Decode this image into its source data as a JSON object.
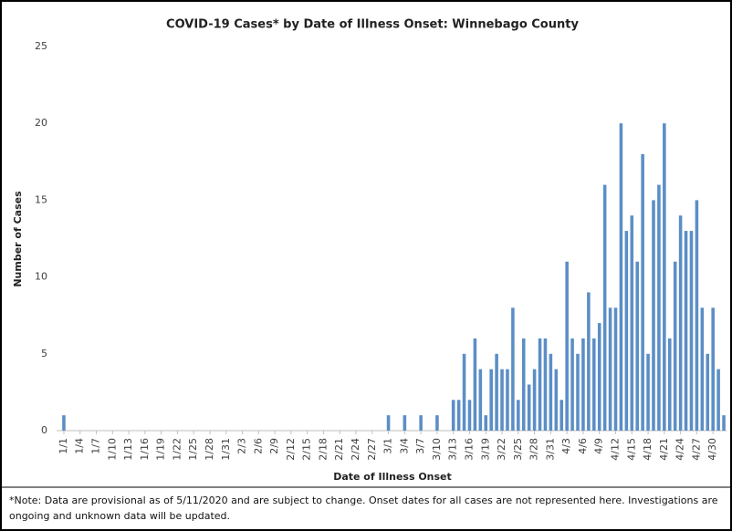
{
  "chart_data": {
    "type": "bar",
    "title": "COVID-19 Cases* by Date of Illness Onset: Winnebago County",
    "x_label": "Date of Illness Onset",
    "y_label": "Number of Cases",
    "footnote": "*Note: Data are provisional as of 5/11/2020 and are subject to change. Onset dates for all cases are not represented here. Investigations are ongoing and unknown data will be updated.",
    "color": "#5b8ec6",
    "ylim": [
      0,
      25
    ],
    "yticks": [
      0,
      5,
      10,
      15,
      20,
      25
    ],
    "grid": false,
    "categories": [
      "1/1",
      null,
      null,
      "1/4",
      null,
      null,
      "1/7",
      null,
      null,
      "1/10",
      null,
      null,
      "1/13",
      null,
      null,
      "1/16",
      null,
      null,
      "1/19",
      null,
      null,
      "1/22",
      null,
      null,
      "1/25",
      null,
      null,
      "1/28",
      null,
      null,
      "1/31",
      null,
      null,
      "2/3",
      null,
      null,
      "2/6",
      null,
      null,
      "2/9",
      null,
      null,
      "2/12",
      null,
      null,
      "2/15",
      null,
      null,
      "2/18",
      null,
      null,
      "2/21",
      null,
      null,
      "2/24",
      null,
      null,
      "2/27",
      null,
      null,
      "3/1",
      null,
      null,
      "3/4",
      null,
      null,
      "3/7",
      null,
      null,
      "3/10",
      null,
      null,
      "3/13",
      null,
      null,
      "3/16",
      null,
      null,
      "3/19",
      null,
      null,
      "3/22",
      null,
      null,
      "3/25",
      null,
      null,
      "3/28",
      null,
      null,
      "3/31",
      null,
      null,
      "4/3",
      null,
      null,
      "4/6",
      null,
      null,
      "4/9",
      null,
      null,
      "4/12",
      null,
      null,
      "4/15",
      null,
      null,
      "4/18",
      null,
      null,
      "4/21",
      null,
      null,
      "4/24",
      null,
      null,
      "4/27",
      null,
      null,
      "4/30",
      null,
      null
    ],
    "values": [
      1,
      0,
      0,
      0,
      0,
      0,
      0,
      0,
      0,
      0,
      0,
      0,
      0,
      0,
      0,
      0,
      0,
      0,
      0,
      0,
      0,
      0,
      0,
      0,
      0,
      0,
      0,
      0,
      0,
      0,
      0,
      0,
      0,
      0,
      0,
      0,
      0,
      0,
      0,
      0,
      0,
      0,
      0,
      0,
      0,
      0,
      0,
      0,
      0,
      0,
      0,
      0,
      0,
      0,
      0,
      0,
      0,
      0,
      0,
      0,
      1,
      0,
      0,
      1,
      0,
      0,
      1,
      0,
      0,
      1,
      0,
      0,
      2,
      2,
      5,
      2,
      6,
      4,
      1,
      4,
      5,
      4,
      4,
      8,
      2,
      6,
      3,
      4,
      6,
      6,
      5,
      4,
      2,
      11,
      6,
      5,
      6,
      9,
      6,
      7,
      16,
      8,
      8,
      20,
      13,
      14,
      11,
      18,
      5,
      15,
      16,
      20,
      6,
      11,
      14,
      13,
      13,
      15,
      8,
      5,
      8,
      4,
      1
    ]
  }
}
